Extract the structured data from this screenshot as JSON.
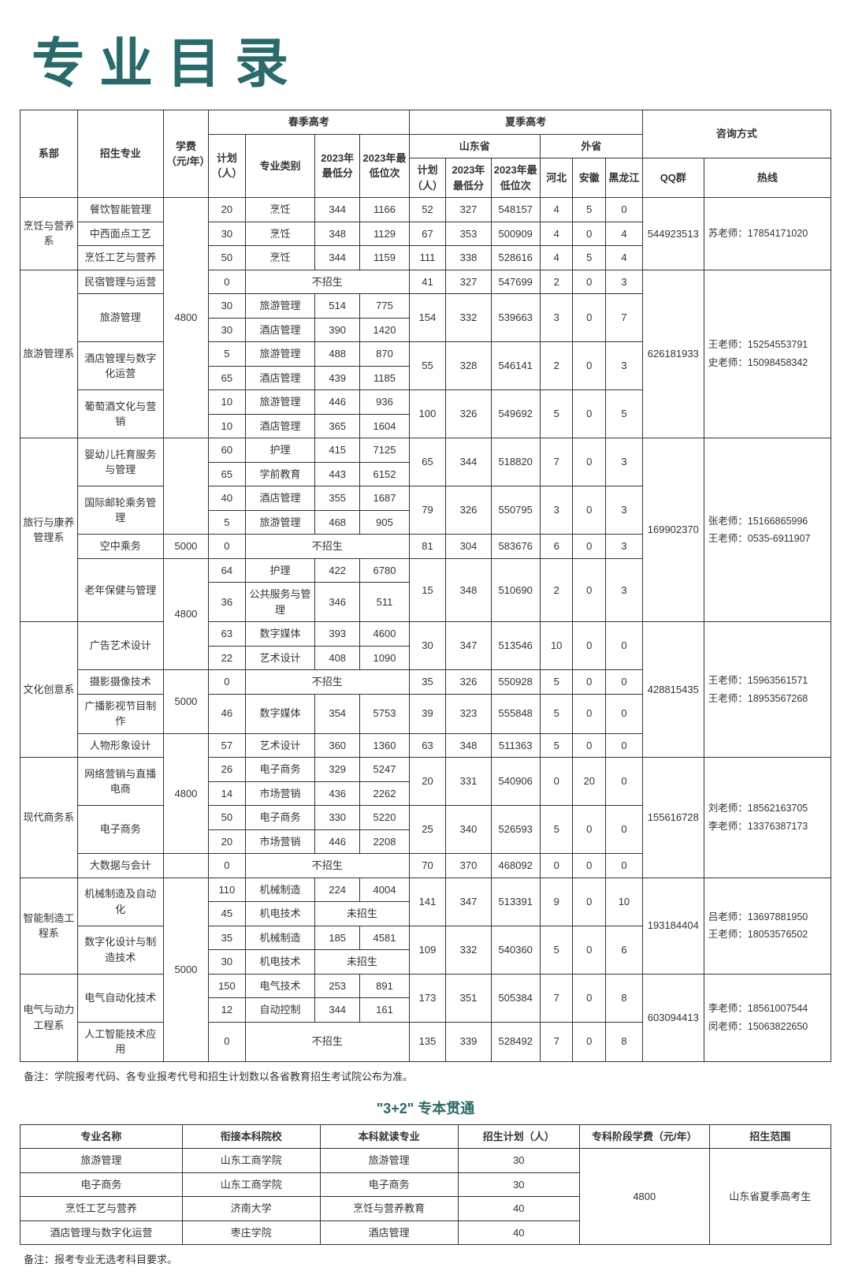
{
  "title": "专业目录",
  "headers": {
    "dept": "系部",
    "major": "招生专业",
    "fee": "学费",
    "fee_unit": "（元/年）",
    "spring": "春季高考",
    "summer": "夏季高考",
    "shandong": "山东省",
    "other_prov": "外省",
    "contact": "咨询方式",
    "plan": "计划",
    "plan_unit": "（人）",
    "category": "专业类别",
    "min_score": "2023年最低分",
    "min_rank": "2023年最低位次",
    "hebei": "河北",
    "anhui": "安徽",
    "heilongjiang": "黑龙江",
    "qq": "QQ群",
    "hotline": "热线"
  },
  "no_recruit": "不招生",
  "not_recruit": "未招生",
  "footnote1": "备注：学院报考代码、各专业报考代号和招生计划数以各省教育招生考试院公布为准。",
  "section2_title": "\"3+2\" 专本贯通",
  "t2h": {
    "major": "专业名称",
    "school": "衔接本科院校",
    "bmajor": "本科就读专业",
    "plan": "招生计划（人）",
    "fee": "专科阶段学费（元/年）",
    "scope": "招生范围"
  },
  "t2": {
    "r1": {
      "major": "旅游管理",
      "school": "山东工商学院",
      "bmajor": "旅游管理",
      "plan": "30"
    },
    "r2": {
      "major": "电子商务",
      "school": "山东工商学院",
      "bmajor": "电子商务",
      "plan": "30"
    },
    "r3": {
      "major": "烹饪工艺与营养",
      "school": "济南大学",
      "bmajor": "烹饪与营养教育",
      "plan": "40"
    },
    "r4": {
      "major": "酒店管理与数字化运营",
      "school": "枣庄学院",
      "bmajor": "酒店管理",
      "plan": "40"
    },
    "fee": "4800",
    "scope": "山东省夏季高考生"
  },
  "footnote2": "备注：报考专业无选考科目要求。",
  "d1": {
    "name": "烹饪与营养系",
    "fee_4800": "4800",
    "qq": "544923513",
    "contact": "苏老师：17854171020",
    "r1": {
      "major": "餐饮智能管理",
      "plan": "20",
      "cat": "烹饪",
      "score": "344",
      "rank": "1166",
      "splan": "52",
      "sscore": "327",
      "srank": "548157",
      "hb": "4",
      "ah": "5",
      "hlj": "0"
    },
    "r2": {
      "major": "中西面点工艺",
      "plan": "30",
      "cat": "烹饪",
      "score": "348",
      "rank": "1129",
      "splan": "67",
      "sscore": "353",
      "srank": "500909",
      "hb": "4",
      "ah": "0",
      "hlj": "4"
    },
    "r3": {
      "major": "烹饪工艺与营养",
      "plan": "50",
      "cat": "烹饪",
      "score": "344",
      "rank": "1159",
      "splan": "111",
      "sscore": "338",
      "srank": "528616",
      "hb": "4",
      "ah": "5",
      "hlj": "4"
    }
  },
  "d2": {
    "name": "旅游管理系",
    "fee": "4800",
    "qq": "626181933",
    "contact": "王老师：15254553791\n史老师：15098458342",
    "m1": "民宿管理与运营",
    "m2": "旅游管理",
    "m3": "酒店管理与数字化运营",
    "m4": "葡萄酒文化与营销",
    "r1": {
      "plan": "0",
      "splan": "41",
      "sscore": "327",
      "srank": "547699",
      "hb": "2",
      "ah": "0",
      "hlj": "3"
    },
    "r2a": {
      "plan": "30",
      "cat": "旅游管理",
      "score": "514",
      "rank": "775"
    },
    "r2b": {
      "plan": "30",
      "cat": "酒店管理",
      "score": "390",
      "rank": "1420"
    },
    "r2s": {
      "splan": "154",
      "sscore": "332",
      "srank": "539663",
      "hb": "3",
      "ah": "0",
      "hlj": "7"
    },
    "r3a": {
      "plan": "5",
      "cat": "旅游管理",
      "score": "488",
      "rank": "870"
    },
    "r3b": {
      "plan": "65",
      "cat": "酒店管理",
      "score": "439",
      "rank": "1185"
    },
    "r3s": {
      "splan": "55",
      "sscore": "328",
      "srank": "546141",
      "hb": "2",
      "ah": "0",
      "hlj": "3"
    },
    "r4a": {
      "plan": "10",
      "cat": "旅游管理",
      "score": "446",
      "rank": "936"
    },
    "r4b": {
      "plan": "10",
      "cat": "酒店管理",
      "score": "365",
      "rank": "1604"
    },
    "r4s": {
      "splan": "100",
      "sscore": "326",
      "srank": "549692",
      "hb": "5",
      "ah": "0",
      "hlj": "5"
    }
  },
  "d3": {
    "name": "旅行与康养管理系",
    "fee_5000": "5000",
    "fee_4800": "4800",
    "qq": "169902370",
    "contact": "张老师：15166865996\n王老师：0535-6911907",
    "m1": "婴幼儿托育服务与管理",
    "m2": "国际邮轮乘务管理",
    "m3": "空中乘务",
    "m4": "老年保健与管理",
    "r1a": {
      "plan": "60",
      "cat": "护理",
      "score": "415",
      "rank": "7125"
    },
    "r1b": {
      "plan": "65",
      "cat": "学前教育",
      "score": "443",
      "rank": "6152"
    },
    "r1s": {
      "splan": "65",
      "sscore": "344",
      "srank": "518820",
      "hb": "7",
      "ah": "0",
      "hlj": "3"
    },
    "r2a": {
      "plan": "40",
      "cat": "酒店管理",
      "score": "355",
      "rank": "1687"
    },
    "r2b": {
      "plan": "5",
      "cat": "旅游管理",
      "score": "468",
      "rank": "905"
    },
    "r2s": {
      "splan": "79",
      "sscore": "326",
      "srank": "550795",
      "hb": "3",
      "ah": "0",
      "hlj": "3"
    },
    "r3": {
      "plan": "0",
      "splan": "81",
      "sscore": "304",
      "srank": "583676",
      "hb": "6",
      "ah": "0",
      "hlj": "3"
    },
    "r4a": {
      "plan": "64",
      "cat": "护理",
      "score": "422",
      "rank": "6780"
    },
    "r4b": {
      "plan": "36",
      "cat": "公共服务与管理",
      "score": "346",
      "rank": "511"
    },
    "r4s": {
      "splan": "15",
      "sscore": "348",
      "srank": "510690",
      "hb": "2",
      "ah": "0",
      "hlj": "3"
    }
  },
  "d4": {
    "name": "文化创意系",
    "fee_5000": "5000",
    "fee_4800": "4800",
    "qq": "428815435",
    "contact": "王老师：15963561571\n王老师：18953567268",
    "m1": "广告艺术设计",
    "m2": "摄影摄像技术",
    "m3": "广播影视节目制作",
    "m4": "人物形象设计",
    "r1a": {
      "plan": "63",
      "cat": "数字媒体",
      "score": "393",
      "rank": "4600"
    },
    "r1b": {
      "plan": "22",
      "cat": "艺术设计",
      "score": "408",
      "rank": "1090"
    },
    "r1s": {
      "splan": "30",
      "sscore": "347",
      "srank": "513546",
      "hb": "10",
      "ah": "0",
      "hlj": "0"
    },
    "r2": {
      "plan": "0",
      "splan": "35",
      "sscore": "326",
      "srank": "550928",
      "hb": "5",
      "ah": "0",
      "hlj": "0"
    },
    "r3": {
      "plan": "46",
      "cat": "数字媒体",
      "score": "354",
      "rank": "5753",
      "splan": "39",
      "sscore": "323",
      "srank": "555848",
      "hb": "5",
      "ah": "0",
      "hlj": "0"
    },
    "r4": {
      "plan": "57",
      "cat": "艺术设计",
      "score": "360",
      "rank": "1360",
      "splan": "63",
      "sscore": "348",
      "srank": "511363",
      "hb": "5",
      "ah": "0",
      "hlj": "0"
    }
  },
  "d5": {
    "name": "现代商务系",
    "fee": "4800",
    "qq": "155616728",
    "contact": "刘老师：18562163705\n李老师：13376387173",
    "m1": "网络营销与直播电商",
    "m2": "电子商务",
    "m3": "大数据与会计",
    "r1a": {
      "plan": "26",
      "cat": "电子商务",
      "score": "329",
      "rank": "5247"
    },
    "r1b": {
      "plan": "14",
      "cat": "市场营销",
      "score": "436",
      "rank": "2262"
    },
    "r1s": {
      "splan": "20",
      "sscore": "331",
      "srank": "540906",
      "hb": "0",
      "ah": "20",
      "hlj": "0"
    },
    "r2a": {
      "plan": "50",
      "cat": "电子商务",
      "score": "330",
      "rank": "5220"
    },
    "r2b": {
      "plan": "20",
      "cat": "市场营销",
      "score": "446",
      "rank": "2208"
    },
    "r2s": {
      "splan": "25",
      "sscore": "340",
      "srank": "526593",
      "hb": "5",
      "ah": "0",
      "hlj": "0"
    },
    "r3": {
      "plan": "0",
      "splan": "70",
      "sscore": "370",
      "srank": "468092",
      "hb": "0",
      "ah": "0",
      "hlj": "0"
    }
  },
  "d6": {
    "name": "智能制造工程系",
    "fee": "5000",
    "qq": "193184404",
    "contact": "吕老师：13697881950\n王老师：18053576502",
    "m1": "机械制造及自动化",
    "m2": "数字化设计与制造技术",
    "r1a": {
      "plan": "110",
      "cat": "机械制造",
      "score": "224",
      "rank": "4004"
    },
    "r1b": {
      "plan": "45",
      "cat": "机电技术"
    },
    "r1s": {
      "splan": "141",
      "sscore": "347",
      "srank": "513391",
      "hb": "9",
      "ah": "0",
      "hlj": "10"
    },
    "r2a": {
      "plan": "35",
      "cat": "机械制造",
      "score": "185",
      "rank": "4581"
    },
    "r2b": {
      "plan": "30",
      "cat": "机电技术"
    },
    "r2s": {
      "splan": "109",
      "sscore": "332",
      "srank": "540360",
      "hb": "5",
      "ah": "0",
      "hlj": "6"
    }
  },
  "d7": {
    "name": "电气与动力工程系",
    "qq": "603094413",
    "contact": "李老师：18561007544\n闵老师：15063822650",
    "m1": "电气自动化技术",
    "m2": "人工智能技术应用",
    "r1a": {
      "plan": "150",
      "cat": "电气技术",
      "score": "253",
      "rank": "891"
    },
    "r1b": {
      "plan": "12",
      "cat": "自动控制",
      "score": "344",
      "rank": "161"
    },
    "r1s": {
      "splan": "173",
      "sscore": "351",
      "srank": "505384",
      "hb": "7",
      "ah": "0",
      "hlj": "8"
    },
    "r2": {
      "plan": "0",
      "splan": "135",
      "sscore": "339",
      "srank": "528492",
      "hb": "7",
      "ah": "0",
      "hlj": "8"
    }
  }
}
